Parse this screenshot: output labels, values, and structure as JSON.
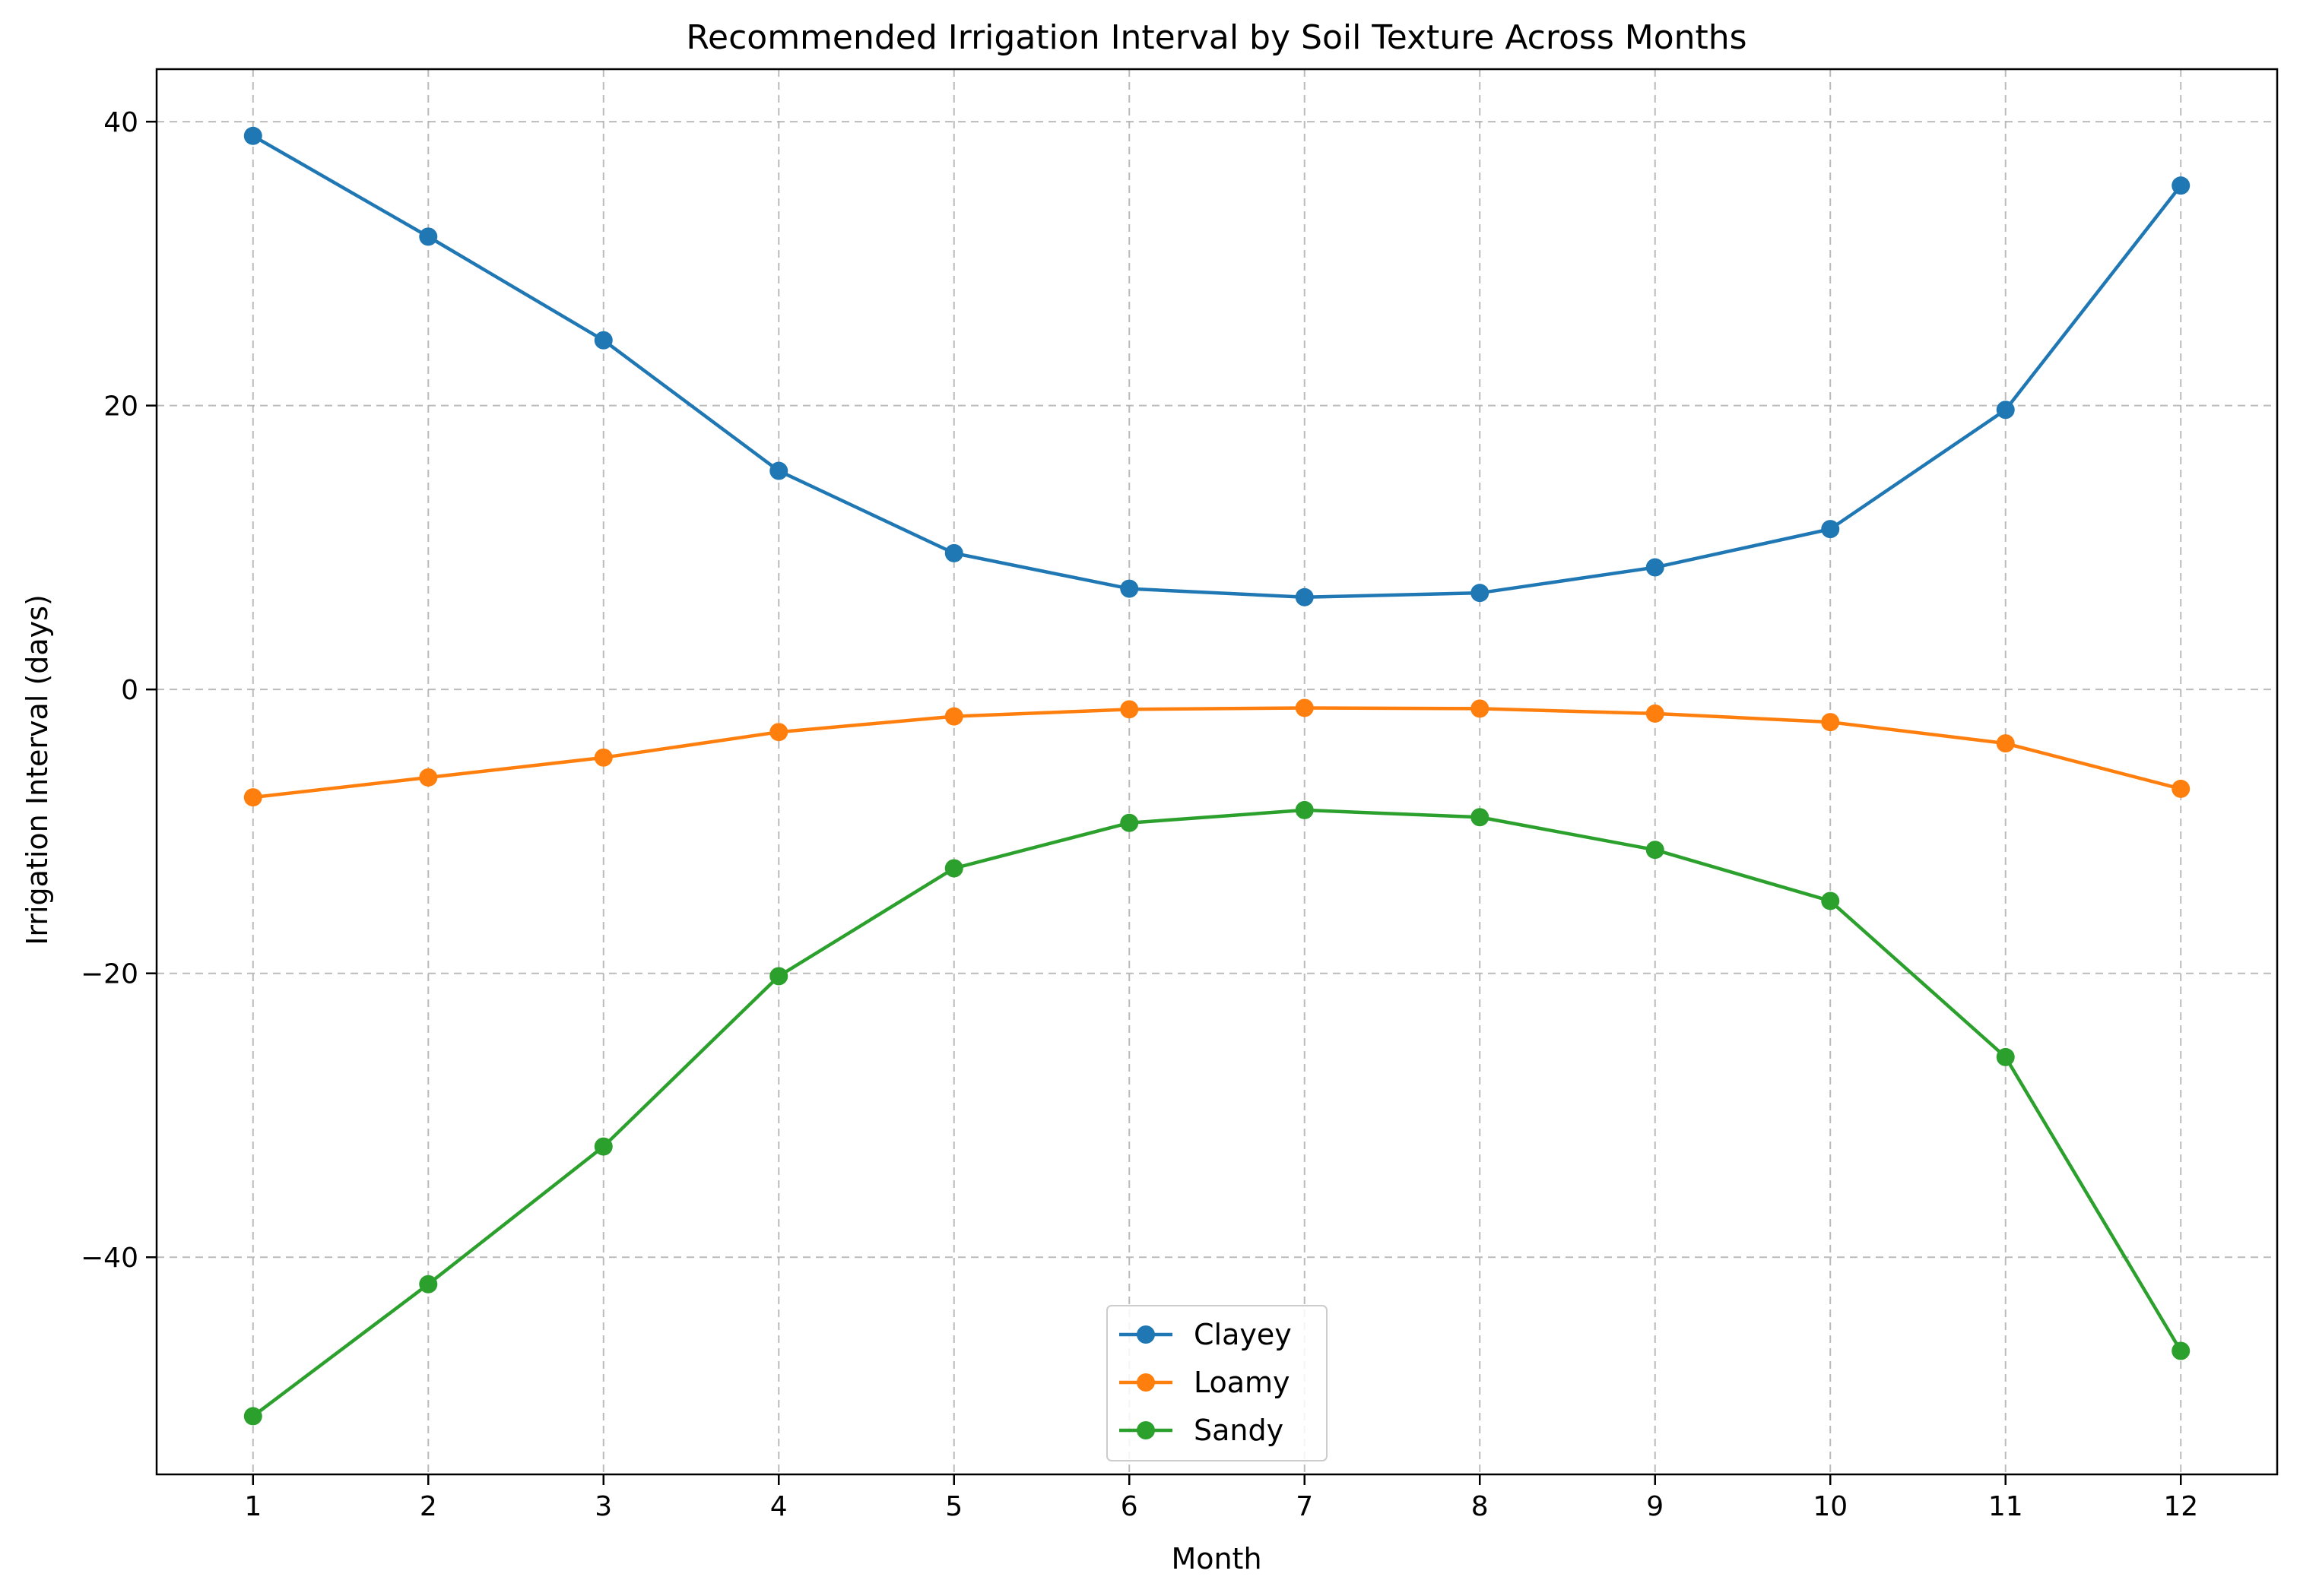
{
  "chart_data": {
    "type": "line",
    "title": "Recommended Irrigation Interval by Soil Texture Across Months",
    "xlabel": "Month",
    "ylabel": "Irrigation Interval (days)",
    "x": [
      1,
      2,
      3,
      4,
      5,
      6,
      7,
      8,
      9,
      10,
      11,
      12
    ],
    "x_ticks": [
      "1",
      "2",
      "3",
      "4",
      "5",
      "6",
      "7",
      "8",
      "9",
      "10",
      "11",
      "12"
    ],
    "xlim": [
      0.45,
      12.55
    ],
    "ylim": [
      -55.3,
      43.7
    ],
    "y_ticks": [
      40,
      20,
      0,
      -20,
      -40
    ],
    "y_tick_labels": [
      "40",
      "20",
      "0",
      "−20",
      "−40"
    ],
    "grid": true,
    "legend_position": "lower center",
    "series": [
      {
        "name": "Clayey",
        "color": "#1f77b4",
        "values": [
          39.0,
          31.9,
          24.6,
          15.4,
          9.6,
          7.1,
          6.5,
          6.8,
          8.6,
          11.3,
          19.7,
          35.5
        ]
      },
      {
        "name": "Loamy",
        "color": "#ff7f0e",
        "values": [
          -7.6,
          -6.2,
          -4.8,
          -3.0,
          -1.9,
          -1.4,
          -1.3,
          -1.35,
          -1.7,
          -2.3,
          -3.8,
          -7.0
        ]
      },
      {
        "name": "Sandy",
        "color": "#2ca02c",
        "values": [
          -51.2,
          -41.9,
          -32.2,
          -20.2,
          -12.6,
          -9.4,
          -8.5,
          -9.0,
          -11.3,
          -14.9,
          -25.9,
          -46.6
        ]
      }
    ]
  }
}
